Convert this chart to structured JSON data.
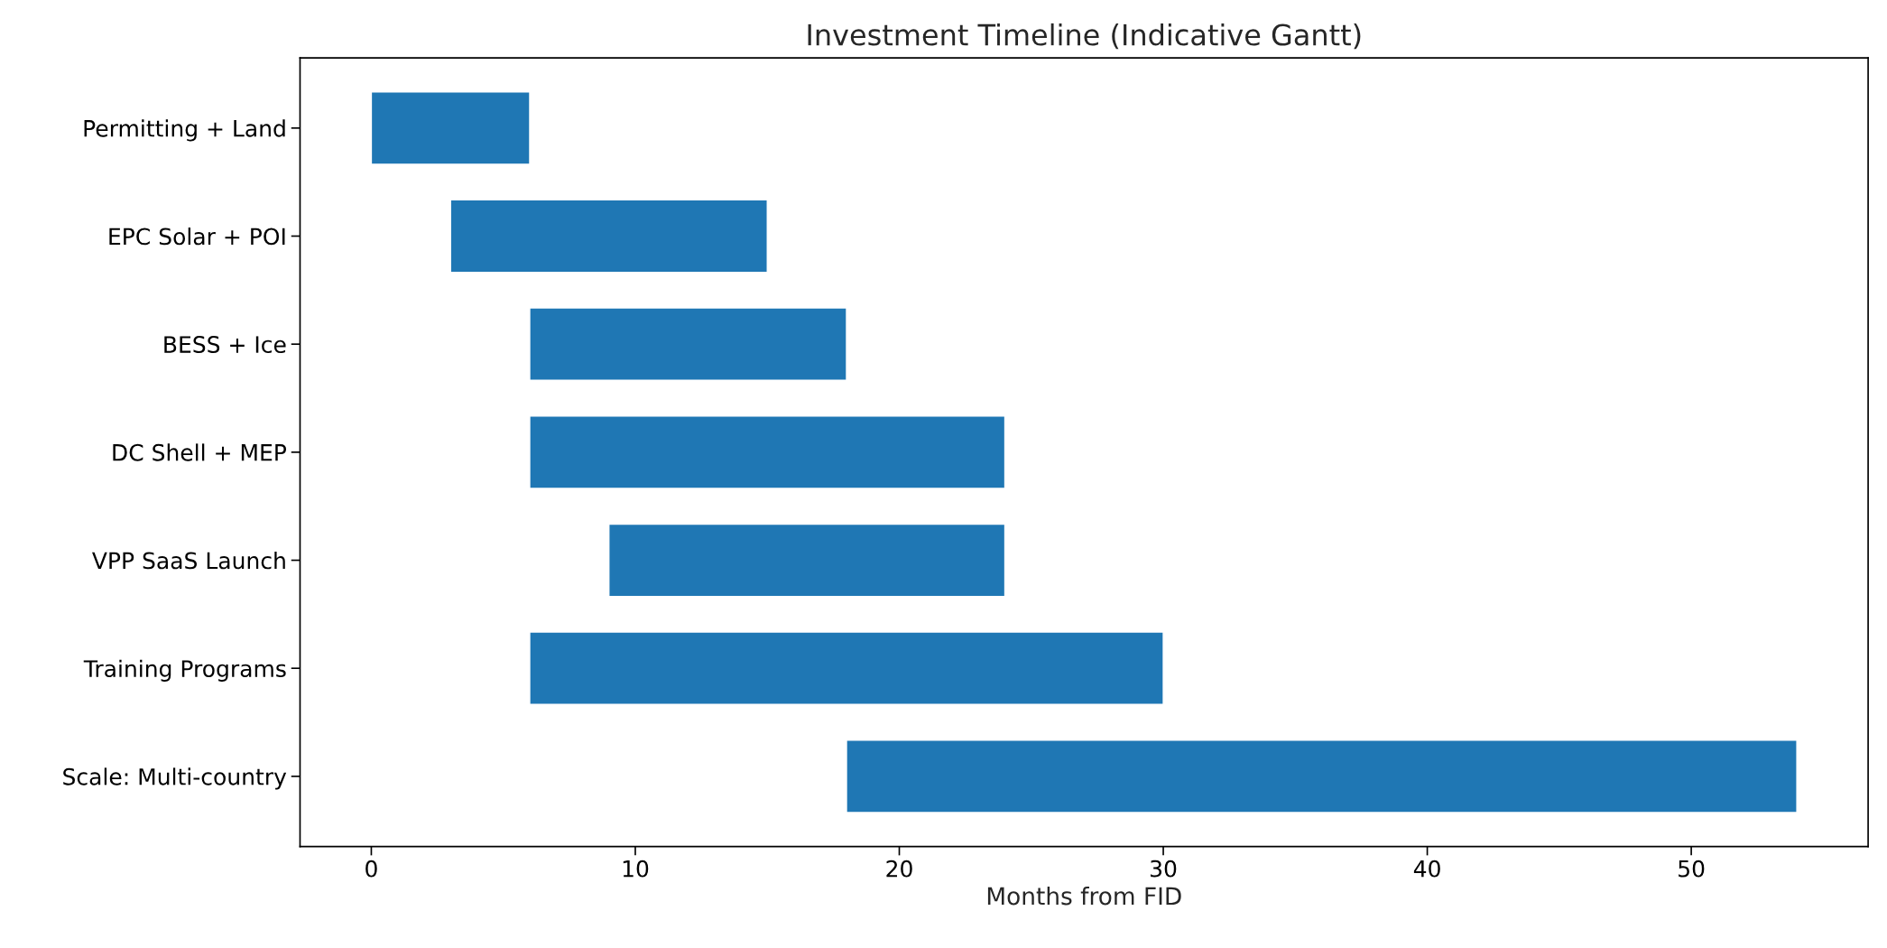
{
  "chart_data": {
    "type": "bar",
    "orientation": "horizontal",
    "title": "Investment Timeline (Indicative Gantt)",
    "xlabel": "Months from FID",
    "categories": [
      "Permitting + Land",
      "EPC Solar + POI",
      "BESS + Ice",
      "DC Shell + MEP",
      "VPP SaaS Launch",
      "Training Programs",
      "Scale: Multi-country"
    ],
    "base": [
      0,
      3,
      6,
      6,
      9,
      6,
      18
    ],
    "values": [
      6,
      12,
      12,
      18,
      15,
      24,
      36
    ],
    "color": "#1f77b4",
    "xlim": [
      -2.7,
      56.7
    ],
    "xticks": [
      0,
      10,
      20,
      30,
      40,
      50
    ]
  }
}
